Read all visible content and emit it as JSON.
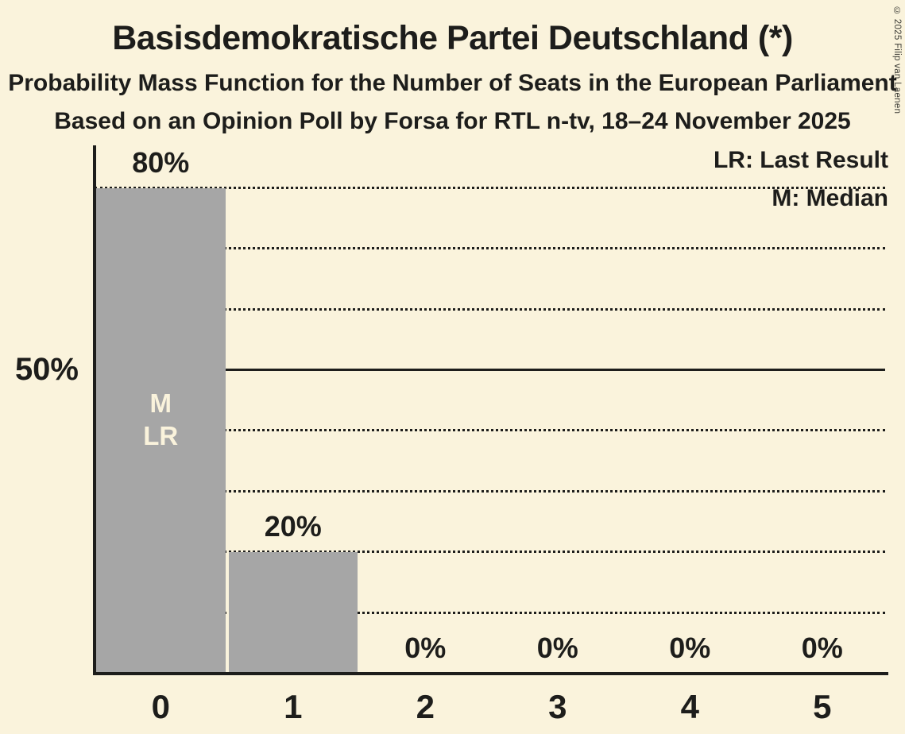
{
  "title": "Basisdemokratische Partei Deutschland (*)",
  "subtitle1": "Probability Mass Function for the Number of Seats in the European Parliament",
  "subtitle2": "Based on an Opinion Poll by Forsa for RTL n-tv, 18–24 November 2025",
  "copyright": "© 2025 Filip van Laenen",
  "legend": {
    "last_result": "LR: Last Result",
    "median": "M: Median"
  },
  "colors": {
    "background": "#faf3dc",
    "bar": "#a6a6a6",
    "text": "#1d1d1b"
  },
  "chart_data": {
    "type": "bar",
    "title": "Basisdemokratische Partei Deutschland (*)",
    "categories": [
      "0",
      "1",
      "2",
      "3",
      "4",
      "5"
    ],
    "values": [
      80,
      20,
      0,
      0,
      0,
      0
    ],
    "value_labels": [
      "80%",
      "20%",
      "0%",
      "0%",
      "0%",
      "0%"
    ],
    "xlabel": "",
    "ylabel": "",
    "y_axis_tick_label": "50%",
    "y_axis_tick_value": 50,
    "ylim": [
      0,
      87
    ],
    "gridlines_pct": [
      10,
      20,
      30,
      40,
      50,
      60,
      70,
      80
    ],
    "solid_gridline_pct": 50,
    "grid_style": "dotted",
    "legend_position": "top-right",
    "bar_annotations": [
      {
        "bar_index": 0,
        "lines": [
          "M",
          "LR"
        ]
      }
    ],
    "median_seats": 0,
    "last_result_seats": 0
  }
}
